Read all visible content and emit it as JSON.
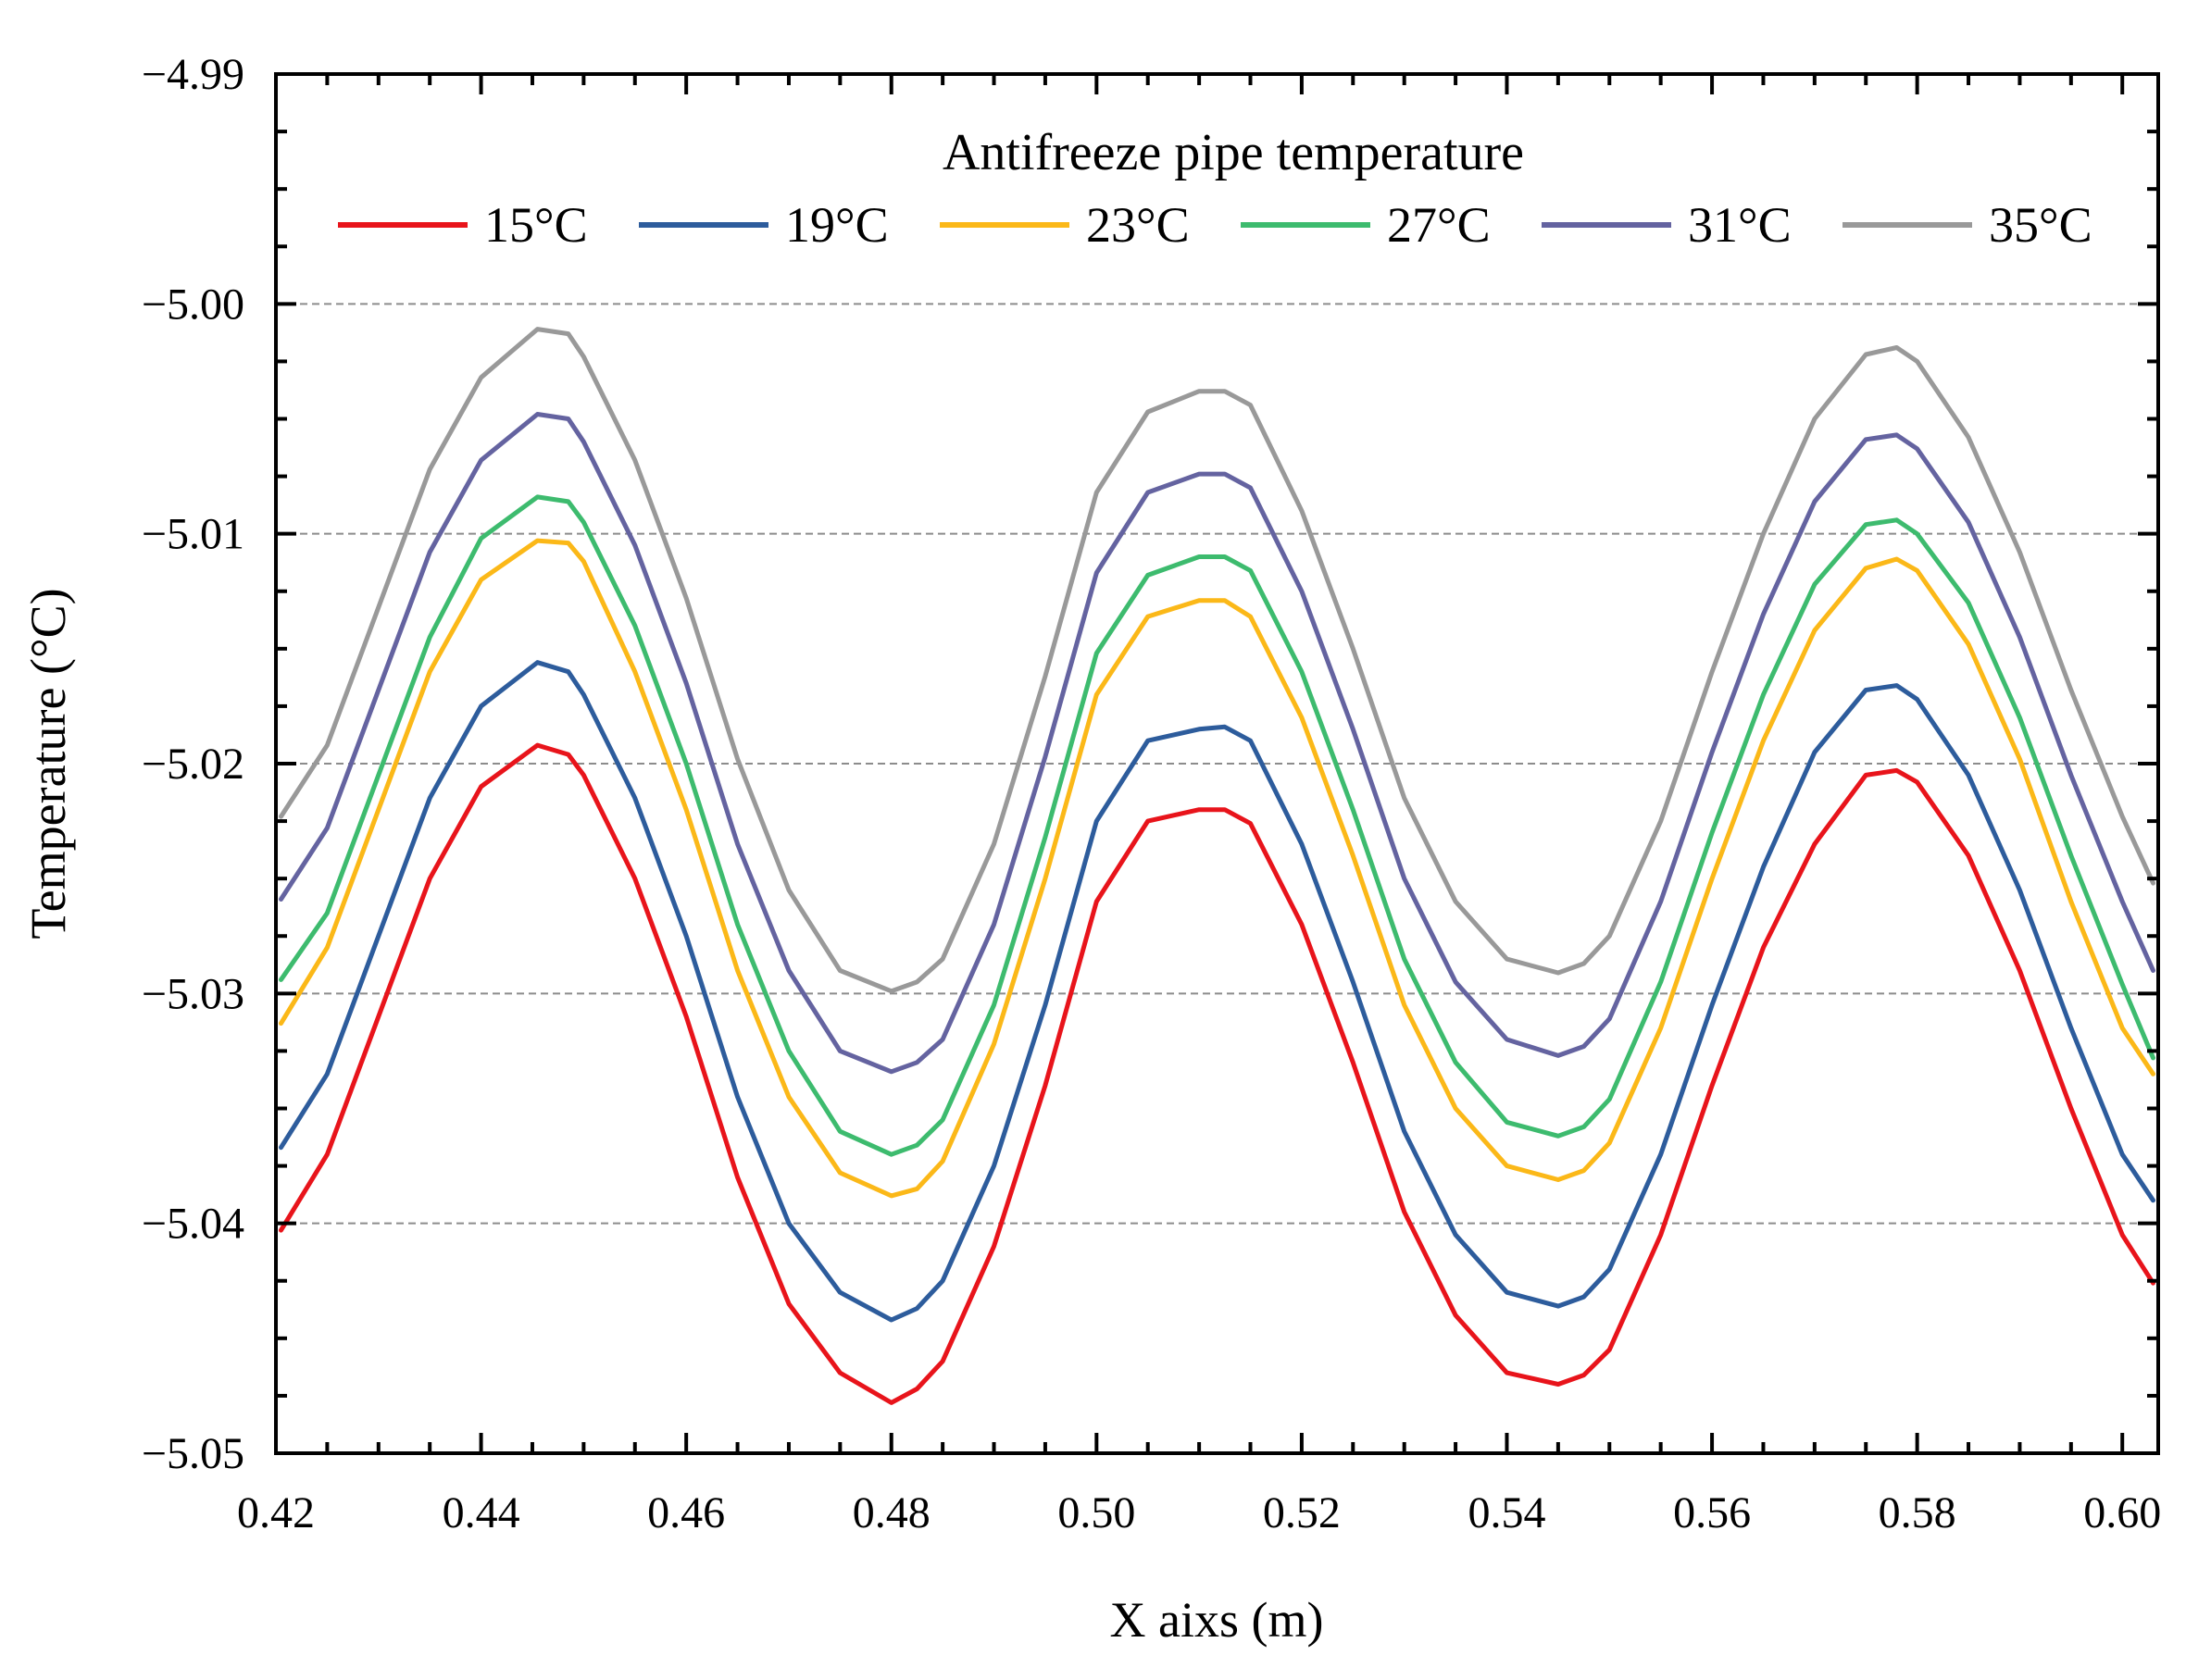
{
  "chart_data": {
    "type": "line",
    "title": "",
    "xlabel": "X aixs (m)",
    "ylabel": "Temperature (°C)",
    "xlim": [
      0.42,
      0.6035
    ],
    "ylim": [
      -5.05,
      -4.99
    ],
    "xticks": [
      0.42,
      0.44,
      0.46,
      0.48,
      0.5,
      0.52,
      0.54,
      0.56,
      0.58,
      0.6
    ],
    "xtick_labels": [
      "0.42",
      "0.44",
      "0.46",
      "0.48",
      "0.50",
      "0.52",
      "0.54",
      "0.56",
      "0.58",
      "0.60"
    ],
    "yticks": [
      -5.05,
      -5.04,
      -5.03,
      -5.02,
      -5.01,
      -5.0,
      -4.99
    ],
    "ytick_labels": [
      "−5.05",
      "−5.04",
      "−5.03",
      "−5.02",
      "−5.01",
      "−5.00",
      "−4.99"
    ],
    "grid": "horizontal dashed",
    "legend": {
      "title": "Antifreeze pipe temperature",
      "position": "top",
      "columns": 6
    },
    "series": [
      {
        "name": "15°C",
        "color": "#e8141b",
        "x": [
          0.4205,
          0.425,
          0.43,
          0.435,
          0.44,
          0.4455,
          0.4485,
          0.45,
          0.455,
          0.46,
          0.465,
          0.47,
          0.475,
          0.48,
          0.4825,
          0.485,
          0.49,
          0.495,
          0.5,
          0.505,
          0.51,
          0.5125,
          0.515,
          0.52,
          0.525,
          0.53,
          0.535,
          0.54,
          0.545,
          0.5475,
          0.55,
          0.555,
          0.56,
          0.565,
          0.57,
          0.575,
          0.578,
          0.58,
          0.585,
          0.59,
          0.595,
          0.6,
          0.603
        ],
        "y": [
          -5.0403,
          -5.037,
          -5.031,
          -5.025,
          -5.021,
          -5.0192,
          -5.0196,
          -5.0205,
          -5.025,
          -5.031,
          -5.038,
          -5.0435,
          -5.0465,
          -5.0478,
          -5.0472,
          -5.046,
          -5.041,
          -5.034,
          -5.026,
          -5.0225,
          -5.022,
          -5.022,
          -5.0226,
          -5.027,
          -5.033,
          -5.0395,
          -5.044,
          -5.0465,
          -5.047,
          -5.0466,
          -5.0455,
          -5.0405,
          -5.034,
          -5.028,
          -5.0235,
          -5.0205,
          -5.0203,
          -5.0208,
          -5.024,
          -5.029,
          -5.035,
          -5.0405,
          -5.0426
        ]
      },
      {
        "name": "19°C",
        "color": "#2d5c9c",
        "x": [
          0.4205,
          0.425,
          0.43,
          0.435,
          0.44,
          0.4455,
          0.4485,
          0.45,
          0.455,
          0.46,
          0.465,
          0.47,
          0.475,
          0.48,
          0.4825,
          0.485,
          0.49,
          0.495,
          0.5,
          0.505,
          0.51,
          0.5125,
          0.515,
          0.52,
          0.525,
          0.53,
          0.535,
          0.54,
          0.545,
          0.5475,
          0.55,
          0.555,
          0.56,
          0.565,
          0.57,
          0.575,
          0.578,
          0.58,
          0.585,
          0.59,
          0.595,
          0.6,
          0.603
        ],
        "y": [
          -5.0367,
          -5.0335,
          -5.0275,
          -5.0215,
          -5.0175,
          -5.0156,
          -5.016,
          -5.017,
          -5.0215,
          -5.0275,
          -5.0345,
          -5.04,
          -5.043,
          -5.0442,
          -5.0437,
          -5.0425,
          -5.0375,
          -5.0305,
          -5.0225,
          -5.019,
          -5.0185,
          -5.0184,
          -5.019,
          -5.0235,
          -5.0295,
          -5.036,
          -5.0405,
          -5.043,
          -5.0436,
          -5.0432,
          -5.042,
          -5.037,
          -5.0305,
          -5.0245,
          -5.0195,
          -5.0168,
          -5.0166,
          -5.0172,
          -5.0205,
          -5.0255,
          -5.0315,
          -5.037,
          -5.039
        ]
      },
      {
        "name": "23°C",
        "color": "#fbb818",
        "x": [
          0.4205,
          0.425,
          0.43,
          0.435,
          0.44,
          0.4455,
          0.4485,
          0.45,
          0.455,
          0.46,
          0.465,
          0.47,
          0.475,
          0.48,
          0.4825,
          0.485,
          0.49,
          0.495,
          0.5,
          0.505,
          0.51,
          0.5125,
          0.515,
          0.52,
          0.525,
          0.53,
          0.535,
          0.54,
          0.545,
          0.5475,
          0.55,
          0.555,
          0.56,
          0.565,
          0.57,
          0.575,
          0.578,
          0.58,
          0.585,
          0.59,
          0.595,
          0.6,
          0.603
        ],
        "y": [
          -5.0313,
          -5.028,
          -5.022,
          -5.016,
          -5.012,
          -5.0103,
          -5.0104,
          -5.0112,
          -5.016,
          -5.022,
          -5.029,
          -5.0345,
          -5.0378,
          -5.0388,
          -5.0385,
          -5.0373,
          -5.0322,
          -5.025,
          -5.017,
          -5.0136,
          -5.0129,
          -5.0129,
          -5.0136,
          -5.018,
          -5.024,
          -5.0305,
          -5.035,
          -5.0375,
          -5.0381,
          -5.0377,
          -5.0365,
          -5.0315,
          -5.025,
          -5.019,
          -5.0142,
          -5.0115,
          -5.0111,
          -5.0116,
          -5.0148,
          -5.0198,
          -5.026,
          -5.0315,
          -5.0335
        ]
      },
      {
        "name": "27°C",
        "color": "#3dbb6e",
        "x": [
          0.4205,
          0.425,
          0.43,
          0.435,
          0.44,
          0.4455,
          0.4485,
          0.45,
          0.455,
          0.46,
          0.465,
          0.47,
          0.475,
          0.48,
          0.4825,
          0.485,
          0.49,
          0.495,
          0.5,
          0.505,
          0.51,
          0.5125,
          0.515,
          0.52,
          0.525,
          0.53,
          0.535,
          0.54,
          0.545,
          0.5475,
          0.55,
          0.555,
          0.56,
          0.565,
          0.57,
          0.575,
          0.578,
          0.58,
          0.585,
          0.59,
          0.595,
          0.6,
          0.603
        ],
        "y": [
          -5.0294,
          -5.0265,
          -5.0205,
          -5.0145,
          -5.0102,
          -5.0084,
          -5.0086,
          -5.0095,
          -5.014,
          -5.02,
          -5.027,
          -5.0325,
          -5.036,
          -5.037,
          -5.0366,
          -5.0355,
          -5.0305,
          -5.0232,
          -5.0152,
          -5.0118,
          -5.011,
          -5.011,
          -5.0116,
          -5.016,
          -5.022,
          -5.0285,
          -5.033,
          -5.0356,
          -5.0362,
          -5.0358,
          -5.0346,
          -5.0295,
          -5.023,
          -5.017,
          -5.0122,
          -5.0096,
          -5.0094,
          -5.01,
          -5.013,
          -5.018,
          -5.024,
          -5.0296,
          -5.0328
        ]
      },
      {
        "name": "31°C",
        "color": "#6463a0",
        "x": [
          0.4205,
          0.425,
          0.43,
          0.435,
          0.44,
          0.4455,
          0.4485,
          0.45,
          0.455,
          0.46,
          0.465,
          0.47,
          0.475,
          0.48,
          0.4825,
          0.485,
          0.49,
          0.495,
          0.5,
          0.505,
          0.51,
          0.5125,
          0.515,
          0.52,
          0.525,
          0.53,
          0.535,
          0.54,
          0.545,
          0.5475,
          0.55,
          0.555,
          0.56,
          0.565,
          0.57,
          0.575,
          0.578,
          0.58,
          0.585,
          0.59,
          0.595,
          0.6,
          0.603
        ],
        "y": [
          -5.0259,
          -5.0228,
          -5.0168,
          -5.0108,
          -5.0068,
          -5.0048,
          -5.005,
          -5.006,
          -5.0105,
          -5.0165,
          -5.0235,
          -5.029,
          -5.0325,
          -5.0334,
          -5.033,
          -5.032,
          -5.027,
          -5.0197,
          -5.0117,
          -5.0082,
          -5.0074,
          -5.0074,
          -5.008,
          -5.0125,
          -5.0185,
          -5.025,
          -5.0295,
          -5.032,
          -5.0327,
          -5.0323,
          -5.0311,
          -5.026,
          -5.0195,
          -5.0135,
          -5.0086,
          -5.0059,
          -5.0057,
          -5.0063,
          -5.0095,
          -5.0145,
          -5.0205,
          -5.026,
          -5.029
        ]
      },
      {
        "name": "35°C",
        "color": "#999999",
        "x": [
          0.4205,
          0.425,
          0.43,
          0.435,
          0.44,
          0.4455,
          0.4485,
          0.45,
          0.455,
          0.46,
          0.465,
          0.47,
          0.475,
          0.48,
          0.4825,
          0.485,
          0.49,
          0.495,
          0.5,
          0.505,
          0.51,
          0.5125,
          0.515,
          0.52,
          0.525,
          0.53,
          0.535,
          0.54,
          0.545,
          0.5475,
          0.55,
          0.555,
          0.56,
          0.565,
          0.57,
          0.575,
          0.578,
          0.58,
          0.585,
          0.59,
          0.595,
          0.6,
          0.603
        ],
        "y": [
          -5.0223,
          -5.0192,
          -5.0132,
          -5.0072,
          -5.0032,
          -5.0011,
          -5.0013,
          -5.0023,
          -5.0068,
          -5.0128,
          -5.0198,
          -5.0255,
          -5.029,
          -5.0299,
          -5.0295,
          -5.0285,
          -5.0235,
          -5.0162,
          -5.0082,
          -5.0047,
          -5.0038,
          -5.0038,
          -5.0044,
          -5.009,
          -5.015,
          -5.0215,
          -5.026,
          -5.0285,
          -5.0291,
          -5.0287,
          -5.0275,
          -5.0225,
          -5.016,
          -5.01,
          -5.005,
          -5.0022,
          -5.0019,
          -5.0025,
          -5.0058,
          -5.0108,
          -5.0168,
          -5.0223,
          -5.0252
        ]
      }
    ]
  }
}
